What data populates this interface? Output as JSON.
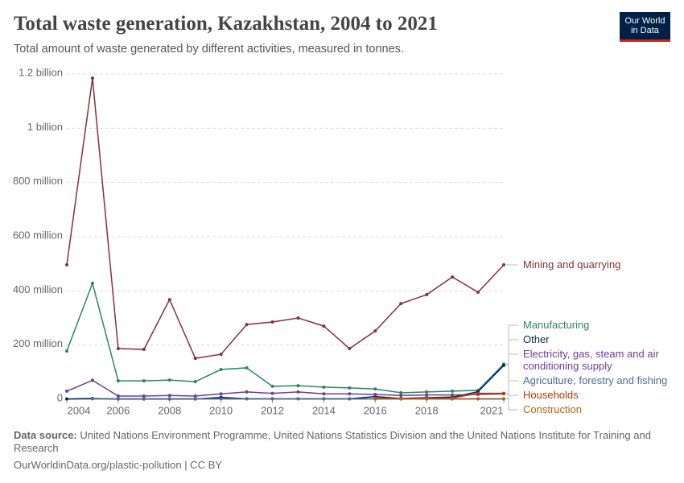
{
  "header": {
    "title": "Total waste generation, Kazakhstan, 2004 to 2021",
    "subtitle": "Total amount of waste generated by different activities, measured in tonnes.",
    "logo": [
      "Our World",
      "in Data"
    ]
  },
  "chart_data": {
    "type": "line",
    "x": [
      2004,
      2005,
      2006,
      2007,
      2008,
      2009,
      2010,
      2011,
      2012,
      2013,
      2014,
      2015,
      2016,
      2017,
      2018,
      2019,
      2020,
      2021
    ],
    "xlim": [
      2004,
      2021
    ],
    "xticks": [
      2004,
      2006,
      2008,
      2010,
      2012,
      2014,
      2016,
      2018,
      2021
    ],
    "ylim": [
      0,
      1200000000
    ],
    "yticks": [
      0,
      {
        "value": 200000000,
        "label": "200 million"
      },
      {
        "value": 400000000,
        "label": "400 million"
      },
      {
        "value": 600000000,
        "label": "600 million"
      },
      {
        "value": 800000000,
        "label": "800 million"
      },
      {
        "value": 1000000000,
        "label": "1 billion"
      },
      {
        "value": 1200000000,
        "label": "1.2 billion"
      }
    ],
    "grid": true,
    "series": [
      {
        "name": "Mining and quarrying",
        "color": "#883039",
        "values": [
          496000000,
          1185000000,
          187000000,
          184000000,
          368000000,
          151000000,
          166000000,
          276000000,
          285000000,
          300000000,
          270000000,
          187000000,
          252000000,
          353000000,
          386000000,
          451000000,
          395000000,
          496000000
        ]
      },
      {
        "name": "Manufacturing",
        "color": "#2c8465",
        "values": [
          178000000,
          428000000,
          68000000,
          68000000,
          71000000,
          65000000,
          110000000,
          116000000,
          48000000,
          50000000,
          45000000,
          42000000,
          38000000,
          24000000,
          27000000,
          30000000,
          33000000,
          130000000
        ]
      },
      {
        "name": "Other",
        "color": "#00295b",
        "values": [
          1000000,
          3000000,
          1000000,
          1000000,
          1000000,
          1000000,
          7000000,
          2000000,
          2000000,
          2000000,
          2000000,
          2000000,
          10000000,
          3000000,
          6000000,
          8000000,
          28000000,
          125000000
        ]
      },
      {
        "name": "Electricity, gas, steam and air conditioning supply",
        "color": "#6d3e91",
        "values": [
          30000000,
          70000000,
          12000000,
          12000000,
          14000000,
          12000000,
          20000000,
          27000000,
          22000000,
          27000000,
          20000000,
          20000000,
          18000000,
          14000000,
          16000000,
          16000000,
          18000000,
          20000000
        ]
      },
      {
        "name": "Agriculture, forestry and fishing",
        "color": "#4c6a9c",
        "values": [
          null,
          2000000,
          2000000,
          2000000,
          2000000,
          2000000,
          2000000,
          2000000,
          2000000,
          2000000,
          2000000,
          2000000,
          2000000,
          2000000,
          2000000,
          2000000,
          2000000,
          2000000
        ]
      },
      {
        "name": "Households",
        "color": "#b13507",
        "values": [
          null,
          null,
          null,
          null,
          null,
          null,
          null,
          null,
          null,
          null,
          null,
          null,
          4000000,
          3000000,
          4000000,
          5000000,
          22000000,
          22000000
        ]
      },
      {
        "name": "Construction",
        "color": "#b16214",
        "values": [
          null,
          null,
          null,
          null,
          null,
          null,
          null,
          null,
          null,
          null,
          null,
          null,
          1000000,
          1000000,
          1000000,
          1000000,
          1000000,
          1000000
        ]
      }
    ]
  },
  "footer": {
    "source_label": "Data source:",
    "source": "United Nations Environment Programme, United Nations Statistics Division and the United Nations Institute for Training and Research",
    "url": "OurWorldinData.org/plastic-pollution | CC BY"
  }
}
